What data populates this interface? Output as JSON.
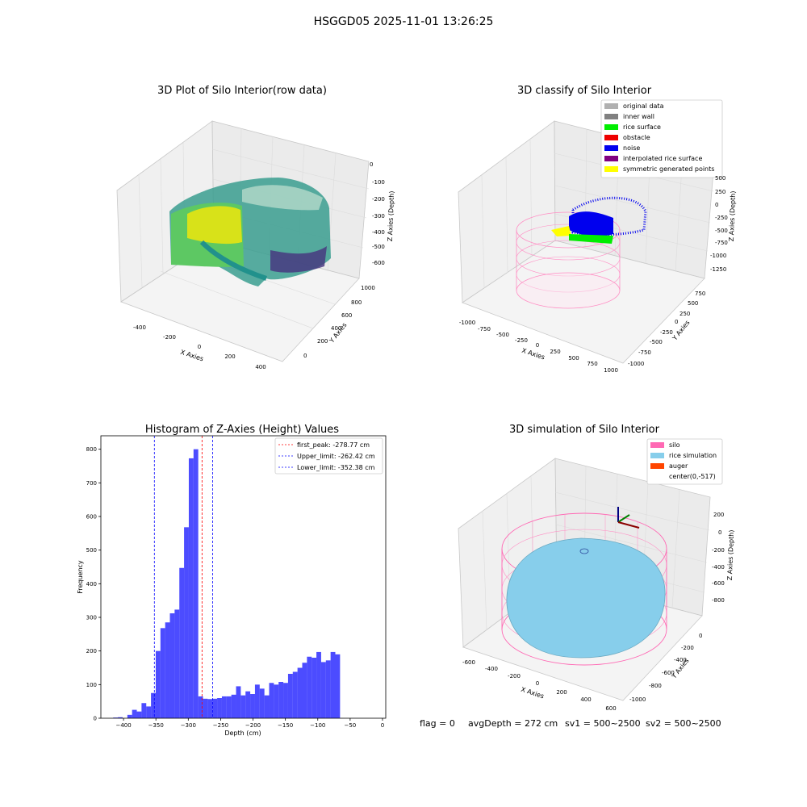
{
  "suptitle": "HSGGD05 2025-11-01 13:26:25",
  "panels": {
    "raw": {
      "title": "3D Plot of Silo Interior(row data)",
      "x_label": "X Axies",
      "y_label": "Y Axies",
      "z_label": "Z Axies (Depth)",
      "x_ticks": [
        "-400",
        "-200",
        "0",
        "200",
        "400"
      ],
      "y_ticks": [
        "0",
        "200",
        "400",
        "600",
        "800",
        "1000"
      ],
      "z_ticks": [
        "0",
        "-100",
        "-200",
        "-300",
        "-400",
        "-500",
        "-600"
      ]
    },
    "classify": {
      "title": "3D classify of Silo Interior",
      "x_label": "X Axies",
      "y_label": "Y Axies",
      "z_label": "Z Axies (Depth)",
      "x_ticks": [
        "-1000",
        "-750",
        "-500",
        "-250",
        "0",
        "250",
        "500",
        "750",
        "1000"
      ],
      "y_ticks": [
        "-1000",
        "-750",
        "-500",
        "-250",
        "0",
        "250",
        "500",
        "750"
      ],
      "z_ticks": [
        "500",
        "250",
        "0",
        "-250",
        "-500",
        "-750",
        "-1000",
        "-1250"
      ],
      "legend": [
        {
          "label": "original data",
          "color": "#b0b0b0"
        },
        {
          "label": "inner wall",
          "color": "#808080"
        },
        {
          "label": "rice surface",
          "color": "#00ee00"
        },
        {
          "label": "obstacle",
          "color": "#ee0000"
        },
        {
          "label": "noise",
          "color": "#0000ee"
        },
        {
          "label": "interpolated rice surface",
          "color": "#800080"
        },
        {
          "label": "symmetric generated points",
          "color": "#ffff00"
        }
      ]
    },
    "simulation": {
      "title": "3D simulation of Silo Interior",
      "x_label": "X Axies",
      "y_label": "Y Axies",
      "z_label": "Z Axies (Depth)",
      "x_ticks": [
        "-600",
        "-400",
        "-200",
        "0",
        "200",
        "400",
        "600"
      ],
      "y_ticks": [
        "0",
        "-200",
        "-400",
        "-600",
        "-800",
        "-1000"
      ],
      "z_ticks": [
        "200",
        "0",
        "-200",
        "-400",
        "-600",
        "-800"
      ],
      "legend": [
        {
          "label": "silo",
          "color": "#ff69b4"
        },
        {
          "label": "rice simulation",
          "color": "#87ceeb"
        },
        {
          "label": "auger",
          "color": "#ff4500"
        },
        {
          "label": "center(0,-517)",
          "color": ""
        }
      ]
    }
  },
  "chart_data": {
    "type": "bar",
    "title": "Histogram of Z-Axies (Height) Values",
    "xlabel": "Depth (cm)",
    "ylabel": "Frequency",
    "xlim": [
      -435,
      5
    ],
    "ylim": [
      0,
      840
    ],
    "x_ticks": [
      -400,
      -350,
      -300,
      -250,
      -200,
      -150,
      -100,
      -50,
      0
    ],
    "y_ticks": [
      0,
      100,
      200,
      300,
      400,
      500,
      600,
      700,
      800
    ],
    "bar_color": "#0000ff",
    "bins": {
      "start": -416,
      "width": 7.3,
      "values": [
        2,
        3,
        0,
        10,
        25,
        20,
        45,
        35,
        75,
        200,
        268,
        285,
        312,
        323,
        447,
        568,
        773,
        800,
        65,
        58,
        57,
        58,
        60,
        65,
        65,
        70,
        95,
        68,
        80,
        72,
        100,
        88,
        68,
        105,
        100,
        108,
        105,
        132,
        138,
        150,
        165,
        183,
        180,
        197,
        167,
        172,
        197,
        190
      ]
    },
    "reference_lines": [
      {
        "label": "first_peak: -278.77 cm",
        "x": -278.77,
        "color": "#ff0000"
      },
      {
        "label": "Upper_limit: -262.42 cm",
        "x": -262.42,
        "color": "#0000ff"
      },
      {
        "label": "Lower_limit: -352.38 cm",
        "x": -352.38,
        "color": "#0000ff"
      }
    ],
    "legend_position": "top-right"
  },
  "footer": {
    "flag": "flag = 0",
    "avg_depth": "avgDepth = 272 cm",
    "sv1": "sv1 = 500~2500",
    "sv2": "sv2 = 500~2500"
  }
}
